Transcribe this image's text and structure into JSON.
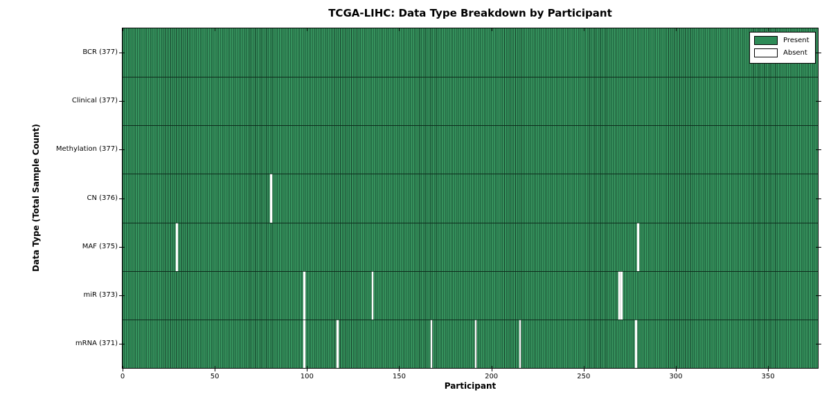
{
  "chart_data": {
    "type": "heatmap",
    "title": "TCGA-LIHC: Data Type Breakdown by Participant",
    "xlabel": "Participant",
    "ylabel": "Data Type (Total Sample Count)",
    "xlim": [
      0,
      377
    ],
    "xticks": [
      0,
      50,
      100,
      150,
      200,
      250,
      300,
      350
    ],
    "total_participants": 377,
    "grid": false,
    "legend": {
      "position": "upper right",
      "entries": [
        {
          "label": "Present",
          "color": "#2e8b57"
        },
        {
          "label": "Absent",
          "color": "#ffffff"
        }
      ]
    },
    "rows": [
      {
        "label": "BCR (377)",
        "data_type": "BCR",
        "present_count": 377,
        "absent_participants": []
      },
      {
        "label": "Clinical (377)",
        "data_type": "Clinical",
        "present_count": 377,
        "absent_participants": []
      },
      {
        "label": "Methylation (377)",
        "data_type": "Methylation",
        "present_count": 377,
        "absent_participants": []
      },
      {
        "label": "CN (376)",
        "data_type": "CN",
        "present_count": 376,
        "absent_participants": [
          80
        ]
      },
      {
        "label": "MAF (375)",
        "data_type": "MAF",
        "present_count": 375,
        "absent_participants": [
          29,
          279
        ]
      },
      {
        "label": "miR (373)",
        "data_type": "miR",
        "present_count": 373,
        "absent_participants": [
          98,
          135,
          269,
          270
        ]
      },
      {
        "label": "mRNA (371)",
        "data_type": "mRNA",
        "present_count": 371,
        "absent_participants": [
          98,
          116,
          167,
          191,
          215,
          278
        ]
      }
    ],
    "colors": {
      "present": "#2e8b57",
      "absent": "#ffffff",
      "bar_edge": "#123a26",
      "axis": "#000000"
    }
  }
}
